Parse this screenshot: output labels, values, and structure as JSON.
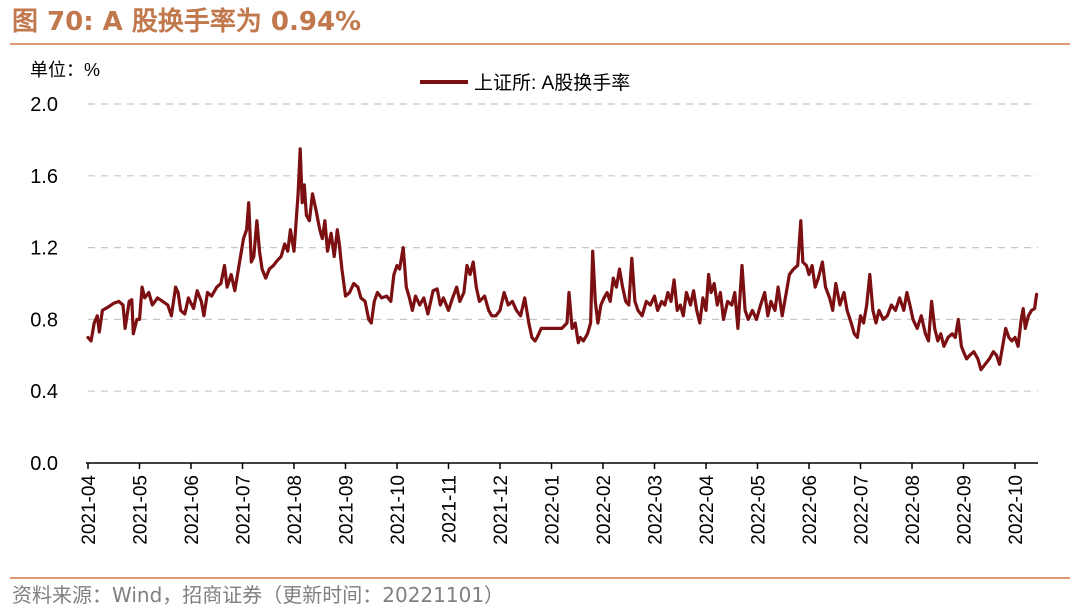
{
  "figure": {
    "title": "图 70:  A 股换手率为 0.94%",
    "source": "资料来源：Wind，招商证券（更新时间：20221101）"
  },
  "colors": {
    "line": "#7b0f12",
    "title": "#c0784c",
    "rule": "#d99a72",
    "grid": "#c8c8c8",
    "axis": "#000000"
  },
  "chart_data": {
    "type": "line",
    "title": "",
    "unit_label": "单位：%",
    "xlabel": "",
    "ylabel": "%",
    "ylim": [
      0.0,
      2.0
    ],
    "yticks": [
      "0.0",
      "0.4",
      "0.8",
      "1.2",
      "1.6",
      "2.0"
    ],
    "ytick_values": [
      0.0,
      0.4,
      0.8,
      1.2,
      1.6,
      2.0
    ],
    "grid": true,
    "legend_position": "top-center",
    "x_ticks": [
      "2021-04",
      "2021-05",
      "2021-06",
      "2021-07",
      "2021-08",
      "2021-09",
      "2021-10",
      "2021-11",
      "2021-12",
      "2022-01",
      "2022-02",
      "2022-03",
      "2022-04",
      "2022-05",
      "2022-06",
      "2022-07",
      "2022-08",
      "2022-09",
      "2022-10"
    ],
    "series": [
      {
        "name": "上证所: A股换手率",
        "points": [
          [
            0.0,
            0.7
          ],
          [
            0.06,
            0.68
          ],
          [
            0.12,
            0.78
          ],
          [
            0.18,
            0.82
          ],
          [
            0.22,
            0.73
          ],
          [
            0.28,
            0.85
          ],
          [
            0.4,
            0.87
          ],
          [
            0.5,
            0.89
          ],
          [
            0.6,
            0.9
          ],
          [
            0.68,
            0.88
          ],
          [
            0.72,
            0.75
          ],
          [
            0.8,
            0.9
          ],
          [
            0.85,
            0.91
          ],
          [
            0.88,
            0.72
          ],
          [
            0.95,
            0.8
          ],
          [
            1.0,
            0.8
          ],
          [
            1.05,
            0.98
          ],
          [
            1.1,
            0.92
          ],
          [
            1.18,
            0.95
          ],
          [
            1.25,
            0.88
          ],
          [
            1.35,
            0.92
          ],
          [
            1.45,
            0.9
          ],
          [
            1.55,
            0.88
          ],
          [
            1.62,
            0.82
          ],
          [
            1.7,
            0.98
          ],
          [
            1.75,
            0.95
          ],
          [
            1.8,
            0.85
          ],
          [
            1.88,
            0.83
          ],
          [
            1.95,
            0.92
          ],
          [
            2.05,
            0.86
          ],
          [
            2.12,
            0.96
          ],
          [
            2.2,
            0.9
          ],
          [
            2.25,
            0.82
          ],
          [
            2.32,
            0.95
          ],
          [
            2.4,
            0.93
          ],
          [
            2.5,
            0.98
          ],
          [
            2.58,
            1.0
          ],
          [
            2.65,
            1.1
          ],
          [
            2.7,
            0.98
          ],
          [
            2.78,
            1.05
          ],
          [
            2.85,
            0.96
          ],
          [
            2.95,
            1.13
          ],
          [
            3.02,
            1.25
          ],
          [
            3.08,
            1.3
          ],
          [
            3.12,
            1.45
          ],
          [
            3.17,
            1.12
          ],
          [
            3.22,
            1.15
          ],
          [
            3.28,
            1.35
          ],
          [
            3.33,
            1.18
          ],
          [
            3.38,
            1.08
          ],
          [
            3.45,
            1.03
          ],
          [
            3.52,
            1.08
          ],
          [
            3.6,
            1.1
          ],
          [
            3.68,
            1.13
          ],
          [
            3.75,
            1.15
          ],
          [
            3.82,
            1.22
          ],
          [
            3.88,
            1.18
          ],
          [
            3.93,
            1.3
          ],
          [
            4.0,
            1.18
          ],
          [
            4.08,
            1.5
          ],
          [
            4.12,
            1.75
          ],
          [
            4.16,
            1.45
          ],
          [
            4.2,
            1.55
          ],
          [
            4.24,
            1.38
          ],
          [
            4.3,
            1.35
          ],
          [
            4.36,
            1.5
          ],
          [
            4.42,
            1.42
          ],
          [
            4.5,
            1.3
          ],
          [
            4.55,
            1.25
          ],
          [
            4.6,
            1.35
          ],
          [
            4.65,
            1.18
          ],
          [
            4.72,
            1.28
          ],
          [
            4.78,
            1.15
          ],
          [
            4.84,
            1.3
          ],
          [
            4.88,
            1.22
          ],
          [
            4.93,
            1.08
          ],
          [
            5.0,
            0.93
          ],
          [
            5.08,
            0.95
          ],
          [
            5.16,
            1.0
          ],
          [
            5.24,
            0.98
          ],
          [
            5.3,
            0.92
          ],
          [
            5.38,
            0.9
          ],
          [
            5.45,
            0.8
          ],
          [
            5.5,
            0.78
          ],
          [
            5.56,
            0.9
          ],
          [
            5.62,
            0.95
          ],
          [
            5.7,
            0.92
          ],
          [
            5.8,
            0.93
          ],
          [
            5.88,
            0.9
          ],
          [
            5.94,
            1.05
          ],
          [
            6.0,
            1.1
          ],
          [
            6.05,
            1.08
          ],
          [
            6.12,
            1.2
          ],
          [
            6.18,
            0.98
          ],
          [
            6.24,
            0.92
          ],
          [
            6.3,
            0.85
          ],
          [
            6.36,
            0.93
          ],
          [
            6.44,
            0.88
          ],
          [
            6.52,
            0.92
          ],
          [
            6.6,
            0.83
          ],
          [
            6.7,
            0.96
          ],
          [
            6.78,
            0.97
          ],
          [
            6.84,
            0.88
          ],
          [
            6.9,
            0.92
          ],
          [
            7.0,
            0.85
          ],
          [
            7.08,
            0.92
          ],
          [
            7.16,
            0.98
          ],
          [
            7.22,
            0.9
          ],
          [
            7.3,
            0.95
          ],
          [
            7.36,
            1.1
          ],
          [
            7.42,
            1.05
          ],
          [
            7.48,
            1.12
          ],
          [
            7.54,
            0.98
          ],
          [
            7.6,
            0.9
          ],
          [
            7.7,
            0.93
          ],
          [
            7.78,
            0.85
          ],
          [
            7.84,
            0.82
          ],
          [
            7.92,
            0.82
          ],
          [
            8.0,
            0.85
          ],
          [
            8.08,
            0.95
          ],
          [
            8.16,
            0.88
          ],
          [
            8.24,
            0.9
          ],
          [
            8.32,
            0.85
          ],
          [
            8.4,
            0.82
          ],
          [
            8.48,
            0.92
          ],
          [
            8.56,
            0.78
          ],
          [
            8.62,
            0.7
          ],
          [
            8.68,
            0.68
          ],
          [
            8.72,
            0.7
          ],
          [
            8.8,
            0.75
          ],
          [
            8.9,
            0.75
          ],
          [
            9.0,
            0.75
          ],
          [
            9.1,
            0.75
          ],
          [
            9.2,
            0.75
          ],
          [
            9.3,
            0.78
          ],
          [
            9.34,
            0.95
          ],
          [
            9.4,
            0.75
          ],
          [
            9.46,
            0.78
          ],
          [
            9.52,
            0.67
          ],
          [
            9.56,
            0.7
          ],
          [
            9.62,
            0.68
          ],
          [
            9.7,
            0.72
          ],
          [
            9.76,
            0.78
          ],
          [
            9.8,
            1.18
          ],
          [
            9.85,
            0.9
          ],
          [
            9.9,
            0.78
          ],
          [
            9.96,
            0.88
          ],
          [
            10.02,
            0.92
          ],
          [
            10.08,
            0.95
          ],
          [
            10.14,
            0.9
          ],
          [
            10.2,
            1.03
          ],
          [
            10.26,
            0.98
          ],
          [
            10.32,
            1.08
          ],
          [
            10.38,
            0.98
          ],
          [
            10.44,
            0.9
          ],
          [
            10.5,
            0.88
          ],
          [
            10.56,
            1.14
          ],
          [
            10.62,
            0.9
          ],
          [
            10.68,
            0.85
          ],
          [
            10.76,
            0.82
          ],
          [
            10.84,
            0.9
          ],
          [
            10.92,
            0.88
          ],
          [
            11.0,
            0.93
          ],
          [
            11.06,
            0.85
          ],
          [
            11.14,
            0.9
          ],
          [
            11.2,
            0.88
          ],
          [
            11.26,
            0.95
          ],
          [
            11.32,
            0.9
          ],
          [
            11.38,
            1.02
          ],
          [
            11.44,
            0.85
          ],
          [
            11.5,
            0.88
          ],
          [
            11.56,
            0.82
          ],
          [
            11.62,
            0.95
          ],
          [
            11.7,
            0.88
          ],
          [
            11.76,
            0.96
          ],
          [
            11.82,
            0.85
          ],
          [
            11.88,
            0.78
          ],
          [
            11.94,
            0.92
          ],
          [
            12.0,
            0.85
          ],
          [
            12.05,
            1.05
          ],
          [
            12.1,
            0.95
          ],
          [
            12.16,
            1.0
          ],
          [
            12.22,
            0.88
          ],
          [
            12.28,
            0.95
          ],
          [
            12.34,
            0.8
          ],
          [
            12.42,
            0.9
          ],
          [
            12.5,
            0.88
          ],
          [
            12.56,
            0.95
          ],
          [
            12.62,
            0.75
          ],
          [
            12.7,
            1.1
          ],
          [
            12.76,
            0.85
          ],
          [
            12.82,
            0.8
          ],
          [
            12.9,
            0.85
          ],
          [
            12.98,
            0.8
          ],
          [
            13.06,
            0.88
          ],
          [
            13.14,
            0.95
          ],
          [
            13.2,
            0.82
          ],
          [
            13.26,
            0.9
          ],
          [
            13.34,
            0.85
          ],
          [
            13.4,
            0.98
          ],
          [
            13.48,
            0.82
          ],
          [
            13.56,
            0.95
          ],
          [
            13.62,
            1.05
          ],
          [
            13.7,
            1.08
          ],
          [
            13.78,
            1.1
          ],
          [
            13.84,
            1.35
          ],
          [
            13.88,
            1.12
          ],
          [
            13.95,
            1.1
          ],
          [
            14.0,
            1.05
          ],
          [
            14.06,
            1.1
          ],
          [
            14.12,
            0.98
          ],
          [
            14.18,
            1.03
          ],
          [
            14.26,
            1.12
          ],
          [
            14.32,
            0.98
          ],
          [
            14.4,
            0.92
          ],
          [
            14.46,
            0.85
          ],
          [
            14.52,
            1.0
          ],
          [
            14.6,
            0.88
          ],
          [
            14.68,
            0.95
          ],
          [
            14.74,
            0.85
          ],
          [
            14.82,
            0.78
          ],
          [
            14.88,
            0.72
          ],
          [
            14.94,
            0.7
          ],
          [
            15.0,
            0.82
          ],
          [
            15.06,
            0.78
          ],
          [
            15.12,
            0.88
          ],
          [
            15.18,
            1.05
          ],
          [
            15.24,
            0.85
          ],
          [
            15.3,
            0.78
          ],
          [
            15.36,
            0.85
          ],
          [
            15.44,
            0.8
          ],
          [
            15.52,
            0.82
          ],
          [
            15.6,
            0.88
          ],
          [
            15.68,
            0.85
          ],
          [
            15.76,
            0.92
          ],
          [
            15.84,
            0.85
          ],
          [
            15.9,
            0.95
          ],
          [
            15.96,
            0.88
          ],
          [
            16.02,
            0.8
          ],
          [
            16.1,
            0.75
          ],
          [
            16.18,
            0.82
          ],
          [
            16.26,
            0.72
          ],
          [
            16.32,
            0.68
          ],
          [
            16.38,
            0.9
          ],
          [
            16.44,
            0.75
          ],
          [
            16.5,
            0.68
          ],
          [
            16.56,
            0.72
          ],
          [
            16.62,
            0.65
          ],
          [
            16.7,
            0.7
          ],
          [
            16.78,
            0.72
          ],
          [
            16.84,
            0.7
          ],
          [
            16.9,
            0.8
          ],
          [
            16.96,
            0.65
          ],
          [
            17.0,
            0.62
          ],
          [
            17.06,
            0.58
          ],
          [
            17.12,
            0.6
          ],
          [
            17.2,
            0.62
          ],
          [
            17.28,
            0.58
          ],
          [
            17.34,
            0.52
          ],
          [
            17.42,
            0.55
          ],
          [
            17.5,
            0.58
          ],
          [
            17.58,
            0.62
          ],
          [
            17.64,
            0.6
          ],
          [
            17.7,
            0.55
          ],
          [
            17.76,
            0.65
          ],
          [
            17.82,
            0.75
          ],
          [
            17.88,
            0.7
          ],
          [
            17.94,
            0.68
          ],
          [
            18.0,
            0.7
          ],
          [
            18.06,
            0.65
          ],
          [
            18.12,
            0.8
          ],
          [
            18.16,
            0.86
          ],
          [
            18.2,
            0.75
          ],
          [
            18.26,
            0.82
          ],
          [
            18.32,
            0.85
          ],
          [
            18.38,
            0.86
          ],
          [
            18.42,
            0.94
          ]
        ]
      }
    ]
  }
}
